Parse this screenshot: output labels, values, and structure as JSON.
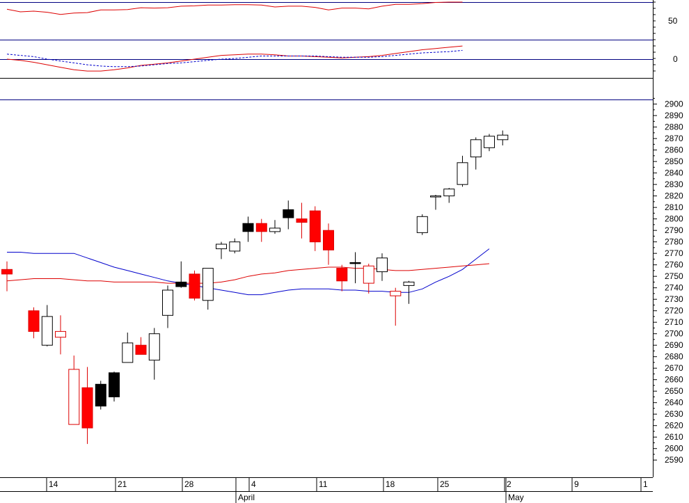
{
  "chart_data": [
    {
      "type": "line",
      "panel": "oscillator-upper",
      "y_tick_labels": [
        "50"
      ],
      "ylim": [
        0,
        100
      ],
      "series": [
        {
          "color": "#dd0000",
          "values": [
            81,
            74,
            76,
            73,
            67,
            71,
            72,
            79,
            79,
            80,
            85,
            84,
            85,
            89,
            90,
            92,
            92,
            93,
            93,
            92,
            87,
            89,
            89,
            86,
            79,
            84,
            84,
            82,
            89,
            94,
            94,
            96,
            99,
            100,
            100
          ]
        }
      ]
    },
    {
      "type": "line",
      "panel": "oscillator-lower",
      "y_tick_labels": [
        "0"
      ],
      "ylim": [
        -30,
        30
      ],
      "series": [
        {
          "color": "#dd0000",
          "style": "solid",
          "values": [
            0,
            -2,
            -5,
            -9,
            -13,
            -17,
            -19,
            -19,
            -17,
            -14,
            -10,
            -8,
            -6,
            -3,
            0,
            3,
            6,
            7,
            8,
            8,
            7,
            5,
            5,
            4,
            3,
            2,
            3,
            4,
            6,
            9,
            12,
            15,
            17,
            19,
            21
          ]
        },
        {
          "color": "#0000cc",
          "style": "dashed",
          "values": [
            8,
            6,
            4,
            0,
            -3,
            -6,
            -9,
            -11,
            -12,
            -12,
            -11,
            -9,
            -7,
            -6,
            -4,
            -2,
            0,
            1,
            3,
            5,
            5,
            5,
            5,
            5,
            4,
            3,
            3,
            3,
            4,
            6,
            8,
            10,
            11,
            12,
            14
          ]
        }
      ]
    },
    {
      "type": "candlestick",
      "panel": "price",
      "ylim": [
        2575,
        2904
      ],
      "y_ticks": [
        2590,
        2600,
        2610,
        2620,
        2630,
        2640,
        2650,
        2660,
        2670,
        2680,
        2690,
        2700,
        2710,
        2720,
        2730,
        2740,
        2750,
        2760,
        2770,
        2780,
        2790,
        2800,
        2810,
        2820,
        2830,
        2840,
        2850,
        2860,
        2870,
        2880,
        2890,
        2900
      ],
      "x_tick_labels": [
        "14",
        "21",
        "28",
        "4",
        "11",
        "18",
        "25",
        "2",
        "9",
        "1"
      ],
      "x_month_labels": [
        "April",
        "May"
      ],
      "candles": [
        {
          "o": 2756,
          "h": 2763,
          "l": 2737,
          "c": 2752,
          "color": "red"
        },
        null,
        {
          "o": 2720,
          "h": 2723,
          "l": 2696,
          "c": 2702,
          "color": "red"
        },
        {
          "o": 2690,
          "h": 2725,
          "l": 2689,
          "c": 2715,
          "color": "white"
        },
        {
          "o": 2702,
          "h": 2716,
          "l": 2682,
          "c": 2697,
          "color": "hollow-red"
        },
        {
          "o": 2621,
          "h": 2681,
          "l": 2621,
          "c": 2669,
          "color": "hollow-red"
        },
        {
          "o": 2653,
          "h": 2671,
          "l": 2604,
          "c": 2618,
          "color": "red"
        },
        {
          "o": 2637,
          "h": 2659,
          "l": 2634,
          "c": 2656,
          "color": "black"
        },
        {
          "o": 2645,
          "h": 2667,
          "l": 2641,
          "c": 2666,
          "color": "black"
        },
        {
          "o": 2675,
          "h": 2701,
          "l": 2675,
          "c": 2692,
          "color": "white"
        },
        {
          "o": 2690,
          "h": 2697,
          "l": 2683,
          "c": 2682,
          "color": "red"
        },
        {
          "o": 2677,
          "h": 2705,
          "l": 2660,
          "c": 2700,
          "color": "white"
        },
        {
          "o": 2716,
          "h": 2742,
          "l": 2705,
          "c": 2738,
          "color": "white"
        },
        {
          "o": 2741,
          "h": 2763,
          "l": 2740,
          "c": 2745,
          "color": "black"
        },
        {
          "o": 2752,
          "h": 2755,
          "l": 2729,
          "c": 2731,
          "color": "red"
        },
        {
          "o": 2729,
          "h": 2757,
          "l": 2721,
          "c": 2757,
          "color": "white"
        },
        {
          "o": 2774,
          "h": 2780,
          "l": 2765,
          "c": 2778,
          "color": "white"
        },
        {
          "o": 2772,
          "h": 2783,
          "l": 2770,
          "c": 2780,
          "color": "white"
        },
        {
          "o": 2789,
          "h": 2802,
          "l": 2780,
          "c": 2796,
          "color": "black"
        },
        {
          "o": 2796,
          "h": 2800,
          "l": 2780,
          "c": 2789,
          "color": "red"
        },
        {
          "o": 2789,
          "h": 2799,
          "l": 2787,
          "c": 2792,
          "color": "white"
        },
        {
          "o": 2801,
          "h": 2816,
          "l": 2791,
          "c": 2808,
          "color": "black"
        },
        {
          "o": 2800,
          "h": 2814,
          "l": 2783,
          "c": 2797,
          "color": "red"
        },
        {
          "o": 2807,
          "h": 2811,
          "l": 2772,
          "c": 2780,
          "color": "red"
        },
        {
          "o": 2790,
          "h": 2796,
          "l": 2760,
          "c": 2773,
          "color": "red"
        },
        {
          "o": 2757,
          "h": 2760,
          "l": 2737,
          "c": 2746,
          "color": "red"
        },
        {
          "o": 2762,
          "h": 2771,
          "l": 2744,
          "c": 2762,
          "color": "black"
        },
        {
          "o": 2744,
          "h": 2761,
          "l": 2735,
          "c": 2759,
          "color": "hollow-red"
        },
        {
          "o": 2754,
          "h": 2770,
          "l": 2746,
          "c": 2766,
          "color": "white"
        },
        {
          "o": 2737,
          "h": 2740,
          "l": 2707,
          "c": 2733,
          "color": "hollow-red"
        },
        {
          "o": 2742,
          "h": 2746,
          "l": 2726,
          "c": 2745,
          "color": "white"
        },
        {
          "o": 2788,
          "h": 2804,
          "l": 2786,
          "c": 2802,
          "color": "white"
        },
        {
          "o": 2820,
          "h": 2821,
          "l": 2808,
          "c": 2820,
          "color": "white"
        },
        {
          "o": 2820,
          "h": 2827,
          "l": 2814,
          "c": 2826,
          "color": "white"
        },
        {
          "o": 2830,
          "h": 2855,
          "l": 2828,
          "c": 2849,
          "color": "white"
        },
        {
          "o": 2854,
          "h": 2871,
          "l": 2843,
          "c": 2869,
          "color": "white"
        },
        {
          "o": 2862,
          "h": 2874,
          "l": 2859,
          "c": 2872,
          "color": "white"
        },
        {
          "o": 2869,
          "h": 2877,
          "l": 2864,
          "c": 2873,
          "color": "white"
        }
      ],
      "overlays": [
        {
          "color": "#0000cc",
          "values": [
            2771,
            2771,
            2770,
            2770,
            2770,
            2770,
            2766,
            2762,
            2758,
            2755,
            2752,
            2749,
            2746,
            2744,
            2742,
            2740,
            2738,
            2736,
            2734,
            2734,
            2736,
            2738,
            2739,
            2739,
            2739,
            2738,
            2738,
            2737,
            2737,
            2736,
            2736,
            2739,
            2745,
            2750,
            2756,
            2765,
            2774
          ]
        },
        {
          "color": "#dd0000",
          "values": [
            2746,
            2747,
            2748,
            2748,
            2748,
            2747,
            2746,
            2746,
            2745,
            2745,
            2745,
            2745,
            2744,
            2744,
            2744,
            2744,
            2745,
            2747,
            2750,
            2752,
            2753,
            2755,
            2756,
            2757,
            2758,
            2758,
            2757,
            2757,
            2756,
            2755,
            2755,
            2756,
            2757,
            2758,
            2759,
            2760,
            2761
          ]
        }
      ]
    }
  ]
}
